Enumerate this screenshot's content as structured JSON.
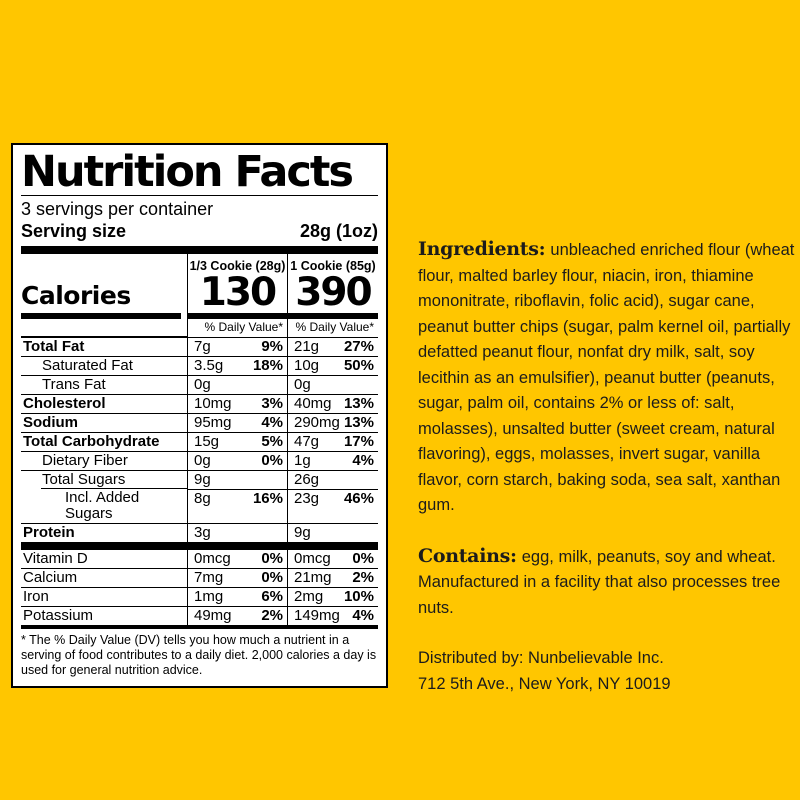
{
  "colors": {
    "background": "#ffc600",
    "panel": "#ffffff",
    "ink": "#000000"
  },
  "nutrition_label": {
    "title": "Nutrition Facts",
    "servings_per_container": "3 servings per container",
    "serving_size_label": "Serving size",
    "serving_size_value": "28g (1oz)",
    "calories_label": "Calories",
    "column1": {
      "header": "1/3 Cookie (28g)",
      "calories": "130",
      "daily_value_header": "% Daily Value*"
    },
    "column2": {
      "header": "1 Cookie (85g)",
      "calories": "390",
      "daily_value_header": "% Daily Value*"
    },
    "rows": [
      {
        "name": "Total Fat",
        "a1": "7g",
        "p1": "9%",
        "a2": "21g",
        "p2": "27%"
      },
      {
        "name": "Saturated Fat",
        "a1": "3.5g",
        "p1": "18%",
        "a2": "10g",
        "p2": "50%"
      },
      {
        "name": "Trans Fat",
        "a1": "0g",
        "p1": "",
        "a2": "0g",
        "p2": ""
      },
      {
        "name": "Cholesterol",
        "a1": "10mg",
        "p1": "3%",
        "a2": "40mg",
        "p2": "13%"
      },
      {
        "name": "Sodium",
        "a1": "95mg",
        "p1": "4%",
        "a2": "290mg",
        "p2": "13%"
      },
      {
        "name": "Total Carbohydrate",
        "a1": "15g",
        "p1": "5%",
        "a2": "47g",
        "p2": "17%"
      },
      {
        "name": "Dietary Fiber",
        "a1": "0g",
        "p1": "0%",
        "a2": "1g",
        "p2": "4%"
      },
      {
        "name": "Total Sugars",
        "a1": "9g",
        "p1": "",
        "a2": "26g",
        "p2": ""
      },
      {
        "name": "Incl. Added Sugars",
        "a1": "8g",
        "p1": "16%",
        "a2": "23g",
        "p2": "46%"
      },
      {
        "name": "Protein",
        "a1": "3g",
        "p1": "",
        "a2": "9g",
        "p2": ""
      },
      {
        "name": "Vitamin D",
        "a1": "0mcg",
        "p1": "0%",
        "a2": "0mcg",
        "p2": "0%"
      },
      {
        "name": "Calcium",
        "a1": "7mg",
        "p1": "0%",
        "a2": "21mg",
        "p2": "2%"
      },
      {
        "name": "Iron",
        "a1": "1mg",
        "p1": "6%",
        "a2": "2mg",
        "p2": "10%"
      },
      {
        "name": "Potassium",
        "a1": "49mg",
        "p1": "2%",
        "a2": "149mg",
        "p2": "4%"
      }
    ],
    "footnote": "* The % Daily Value (DV) tells you how much a nutrient in a serving of food contributes to a daily diet. 2,000 calories a day is used for general nutrition advice."
  },
  "info_panel": {
    "ingredients_label": "Ingredients:",
    "ingredients_text": "unbleached enriched flour (wheat flour, malted barley flour, niacin, iron, thiamine mononitrate, riboflavin, folic acid), sugar cane, peanut butter chips (sugar, palm kernel oil, partially defatted peanut flour, nonfat dry milk, salt, soy lecithin as an emulsifier), peanut butter (peanuts, sugar, palm oil, contains 2% or less of: salt, molasses), unsalted butter (sweet cream, natural flavoring), eggs, molasses, invert sugar, vanilla flavor, corn starch, baking soda, sea salt, xanthan gum.",
    "contains_label": "Contains:",
    "contains_text": "egg, milk, peanuts, soy and wheat. Manufactured in a facility that also processes tree nuts.",
    "distributor_line1": "Distributed by: Nunbelievable Inc.",
    "distributor_line2": "712 5th Ave., New York, NY 10019"
  }
}
